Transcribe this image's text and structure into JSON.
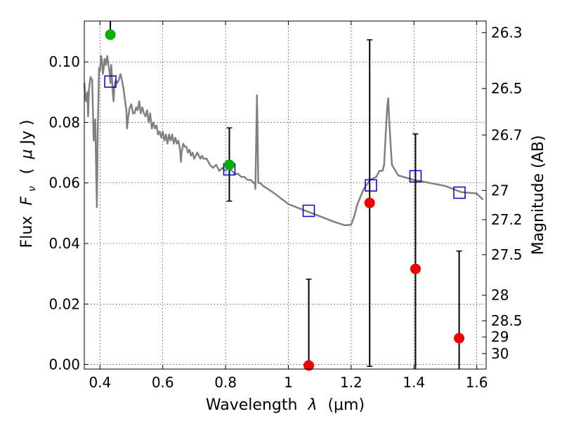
{
  "chart_data": {
    "type": "scatter",
    "xlabel_text": "Wavelength",
    "xlabel_symbol": "λ",
    "xlabel_unit": "(μm)",
    "ylabel_text": "Flux",
    "ylabel_symbol": "F",
    "ylabel_subscript": "ν",
    "ylabel_unit_open": "(",
    "ylabel_unit_mu": "μ",
    "ylabel_unit_rest": "Jy )",
    "y2label": "Magnitude (AB)",
    "xlim": [
      0.35,
      1.63
    ],
    "ylim": [
      -0.0015,
      0.1135
    ],
    "xticks": [
      0.4,
      0.6,
      0.8,
      1.0,
      1.2,
      1.4,
      1.6
    ],
    "xticklabels": [
      "0.4",
      "0.6",
      "0.8",
      "1",
      "1.2",
      "1.4",
      "1.6"
    ],
    "yticks": [
      0.0,
      0.02,
      0.04,
      0.06,
      0.08,
      0.1
    ],
    "yticklabels": [
      "0.00",
      "0.02",
      "0.04",
      "0.06",
      "0.08",
      "0.10"
    ],
    "magnitude_ticks": [
      {
        "label": "26.3",
        "mag": 26.3
      },
      {
        "label": "26.5",
        "mag": 26.5
      },
      {
        "label": "26.7",
        "mag": 26.7
      },
      {
        "label": "27",
        "mag": 27.0
      },
      {
        "label": "27.2",
        "mag": 27.2
      },
      {
        "label": "27.5",
        "mag": 27.5
      },
      {
        "label": "28",
        "mag": 28.0
      },
      {
        "label": "28.5",
        "mag": 28.5
      },
      {
        "label": "29",
        "mag": 29.0
      },
      {
        "label": "30",
        "mag": 30.0
      }
    ],
    "grid": true,
    "colors": {
      "model": "#808080",
      "model_points": "#0000cc",
      "detections": "#00b000",
      "non_detections": "#ee0000",
      "errorbars": "#000000"
    },
    "model_spectrum": [
      [
        0.35,
        0.093
      ],
      [
        0.355,
        0.087
      ],
      [
        0.36,
        0.09
      ],
      [
        0.362,
        0.082
      ],
      [
        0.365,
        0.091
      ],
      [
        0.37,
        0.095
      ],
      [
        0.375,
        0.094
      ],
      [
        0.378,
        0.082
      ],
      [
        0.38,
        0.074
      ],
      [
        0.385,
        0.081
      ],
      [
        0.388,
        0.063
      ],
      [
        0.39,
        0.052
      ],
      [
        0.393,
        0.078
      ],
      [
        0.397,
        0.098
      ],
      [
        0.4,
        0.097
      ],
      [
        0.403,
        0.102
      ],
      [
        0.406,
        0.101
      ],
      [
        0.409,
        0.096
      ],
      [
        0.412,
        0.098
      ],
      [
        0.415,
        0.101
      ],
      [
        0.419,
        0.099
      ],
      [
        0.423,
        0.102
      ],
      [
        0.427,
        0.099
      ],
      [
        0.43,
        0.097
      ],
      [
        0.433,
        0.093
      ],
      [
        0.436,
        0.099
      ],
      [
        0.44,
        0.091
      ],
      [
        0.443,
        0.087
      ],
      [
        0.446,
        0.092
      ],
      [
        0.45,
        0.094
      ],
      [
        0.455,
        0.093
      ],
      [
        0.46,
        0.094
      ],
      [
        0.465,
        0.096
      ],
      [
        0.47,
        0.094
      ],
      [
        0.475,
        0.091
      ],
      [
        0.48,
        0.087
      ],
      [
        0.484,
        0.084
      ],
      [
        0.486,
        0.078
      ],
      [
        0.488,
        0.08
      ],
      [
        0.49,
        0.082
      ],
      [
        0.495,
        0.085
      ],
      [
        0.5,
        0.086
      ],
      [
        0.505,
        0.083
      ],
      [
        0.51,
        0.083
      ],
      [
        0.515,
        0.085
      ],
      [
        0.52,
        0.084
      ],
      [
        0.525,
        0.087
      ],
      [
        0.53,
        0.083
      ],
      [
        0.535,
        0.085
      ],
      [
        0.54,
        0.083
      ],
      [
        0.545,
        0.082
      ],
      [
        0.55,
        0.084
      ],
      [
        0.555,
        0.08
      ],
      [
        0.56,
        0.083
      ],
      [
        0.565,
        0.078
      ],
      [
        0.57,
        0.08
      ],
      [
        0.575,
        0.078
      ],
      [
        0.58,
        0.079
      ],
      [
        0.585,
        0.076
      ],
      [
        0.59,
        0.077
      ],
      [
        0.595,
        0.075
      ],
      [
        0.6,
        0.077
      ],
      [
        0.605,
        0.074
      ],
      [
        0.61,
        0.076
      ],
      [
        0.615,
        0.073
      ],
      [
        0.62,
        0.076
      ],
      [
        0.625,
        0.074
      ],
      [
        0.63,
        0.076
      ],
      [
        0.635,
        0.073
      ],
      [
        0.64,
        0.075
      ],
      [
        0.645,
        0.073
      ],
      [
        0.65,
        0.074
      ],
      [
        0.655,
        0.071
      ],
      [
        0.658,
        0.067
      ],
      [
        0.66,
        0.07
      ],
      [
        0.665,
        0.073
      ],
      [
        0.67,
        0.072
      ],
      [
        0.675,
        0.072
      ],
      [
        0.68,
        0.07
      ],
      [
        0.685,
        0.071
      ],
      [
        0.69,
        0.069
      ],
      [
        0.695,
        0.07
      ],
      [
        0.7,
        0.068
      ],
      [
        0.705,
        0.069
      ],
      [
        0.71,
        0.07
      ],
      [
        0.715,
        0.069
      ],
      [
        0.72,
        0.068
      ],
      [
        0.725,
        0.069
      ],
      [
        0.73,
        0.068
      ],
      [
        0.74,
        0.068
      ],
      [
        0.75,
        0.066
      ],
      [
        0.76,
        0.065
      ],
      [
        0.77,
        0.066
      ],
      [
        0.78,
        0.064
      ],
      [
        0.79,
        0.065
      ],
      [
        0.8,
        0.064
      ],
      [
        0.81,
        0.065
      ],
      [
        0.82,
        0.064
      ],
      [
        0.83,
        0.063
      ],
      [
        0.84,
        0.063
      ],
      [
        0.85,
        0.062
      ],
      [
        0.86,
        0.062
      ],
      [
        0.87,
        0.061
      ],
      [
        0.88,
        0.061
      ],
      [
        0.89,
        0.06
      ],
      [
        0.893,
        0.06
      ],
      [
        0.895,
        0.058
      ],
      [
        0.897,
        0.07
      ],
      [
        0.9,
        0.089
      ],
      [
        0.902,
        0.076
      ],
      [
        0.904,
        0.06
      ],
      [
        0.91,
        0.06
      ],
      [
        0.92,
        0.059
      ],
      [
        0.95,
        0.057
      ],
      [
        1.0,
        0.053
      ],
      [
        1.05,
        0.051
      ],
      [
        1.1,
        0.049
      ],
      [
        1.15,
        0.047
      ],
      [
        1.18,
        0.046
      ],
      [
        1.2,
        0.0462
      ],
      [
        1.21,
        0.049
      ],
      [
        1.22,
        0.053
      ],
      [
        1.24,
        0.058
      ],
      [
        1.26,
        0.061
      ],
      [
        1.28,
        0.062
      ],
      [
        1.29,
        0.064
      ],
      [
        1.3,
        0.064
      ],
      [
        1.305,
        0.066
      ],
      [
        1.31,
        0.076
      ],
      [
        1.315,
        0.085
      ],
      [
        1.318,
        0.088
      ],
      [
        1.322,
        0.079
      ],
      [
        1.33,
        0.066
      ],
      [
        1.35,
        0.0625
      ],
      [
        1.4,
        0.061
      ],
      [
        1.45,
        0.06
      ],
      [
        1.5,
        0.059
      ],
      [
        1.55,
        0.057
      ],
      [
        1.6,
        0.0565
      ],
      [
        1.62,
        0.0545
      ]
    ],
    "model_points": [
      {
        "x": 0.433,
        "y": 0.0935
      },
      {
        "x": 0.812,
        "y": 0.0645
      },
      {
        "x": 1.065,
        "y": 0.0508
      },
      {
        "x": 1.263,
        "y": 0.0592
      },
      {
        "x": 1.405,
        "y": 0.0622
      },
      {
        "x": 1.545,
        "y": 0.0568
      }
    ],
    "detections": [
      {
        "x": 0.433,
        "y": 0.109,
        "yerr_low": 0.109,
        "yerr_high": 0.1135
      },
      {
        "x": 0.812,
        "y": 0.066,
        "yerr_low": 0.054,
        "yerr_high": 0.0782
      }
    ],
    "non_detections": [
      {
        "x": 1.065,
        "y": -0.0003,
        "yerr_low": -0.0015,
        "yerr_high": 0.0282
      },
      {
        "x": 1.259,
        "y": 0.0534,
        "yerr_low": -0.0006,
        "yerr_high": 0.1073
      },
      {
        "x": 1.405,
        "y": 0.0316,
        "yerr_low": -0.0015,
        "yerr_high": 0.0762
      },
      {
        "x": 1.544,
        "y": 0.0087,
        "yerr_low": -0.0015,
        "yerr_high": 0.0375
      }
    ]
  }
}
